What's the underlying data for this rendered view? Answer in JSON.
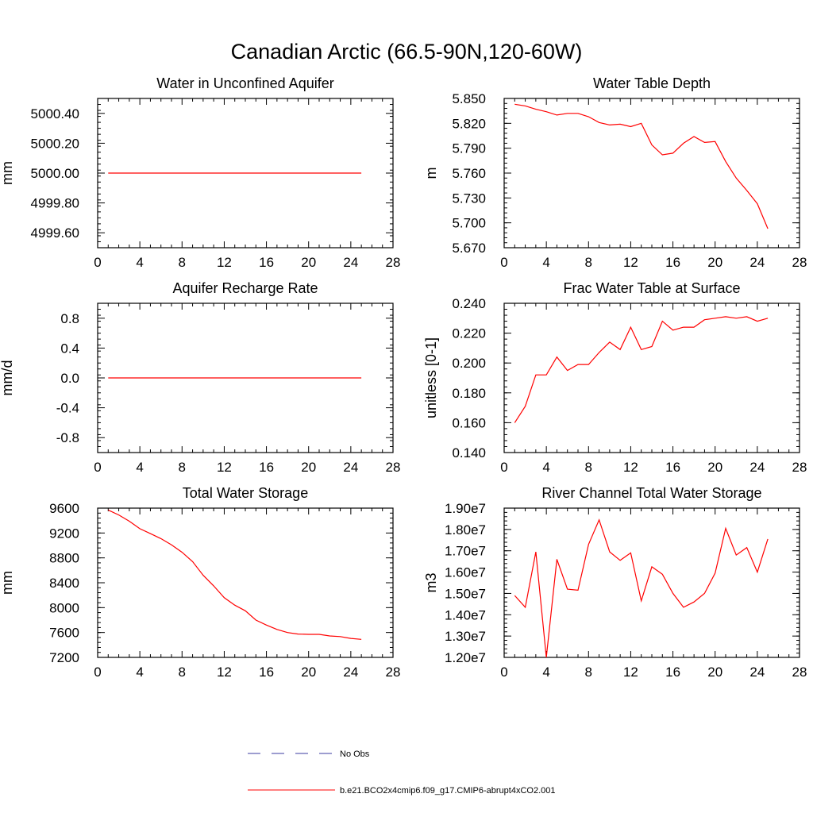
{
  "figure": {
    "title": "Canadian Arctic (66.5-90N,120-60W)"
  },
  "legend": [
    {
      "label": "No Obs",
      "color": "#3b3ba0",
      "dash": "dashed"
    },
    {
      "label": "b.e21.BCO2x4cmip6.f09_g17.CMIP6-abrupt4xCO2.001",
      "color": "#ff0000",
      "dash": "solid"
    }
  ],
  "chart_data": [
    {
      "type": "line",
      "title": "Water in Unconfined Aquifer",
      "ylabel": "mm",
      "xlim": [
        0,
        28
      ],
      "ylim": [
        4999.5,
        5000.5
      ],
      "xticks": [
        "0",
        "4",
        "8",
        "12",
        "16",
        "20",
        "24",
        "28"
      ],
      "yticks": [
        {
          "value": 4999.6,
          "label": "4999.60"
        },
        {
          "value": 4999.8,
          "label": "4999.80"
        },
        {
          "value": 5000.0,
          "label": "5000.00"
        },
        {
          "value": 5000.2,
          "label": "5000.20"
        },
        {
          "value": 5000.4,
          "label": "5000.40"
        }
      ],
      "series": [
        {
          "color": "#ff0000",
          "x": [
            1,
            2,
            3,
            4,
            5,
            6,
            7,
            8,
            9,
            10,
            11,
            12,
            13,
            14,
            15,
            16,
            17,
            18,
            19,
            20,
            21,
            22,
            23,
            24,
            25
          ],
          "y": [
            5000.0,
            5000.0,
            5000.0,
            5000.0,
            5000.0,
            5000.0,
            5000.0,
            5000.0,
            5000.0,
            5000.0,
            5000.0,
            5000.0,
            5000.0,
            5000.0,
            5000.0,
            5000.0,
            5000.0,
            5000.0,
            5000.0,
            5000.0,
            5000.0,
            5000.0,
            5000.0,
            5000.0,
            5000.0
          ]
        }
      ]
    },
    {
      "type": "line",
      "title": "Water Table Depth",
      "ylabel": "m",
      "xlim": [
        0,
        28
      ],
      "ylim": [
        5.67,
        5.85
      ],
      "xticks": [
        "0",
        "4",
        "8",
        "12",
        "16",
        "20",
        "24",
        "28"
      ],
      "yticks": [
        {
          "value": 5.67,
          "label": "5.670"
        },
        {
          "value": 5.7,
          "label": "5.700"
        },
        {
          "value": 5.73,
          "label": "5.730"
        },
        {
          "value": 5.76,
          "label": "5.760"
        },
        {
          "value": 5.79,
          "label": "5.790"
        },
        {
          "value": 5.82,
          "label": "5.820"
        },
        {
          "value": 5.85,
          "label": "5.850"
        }
      ],
      "series": [
        {
          "color": "#ff0000",
          "x": [
            1,
            2,
            3,
            4,
            5,
            6,
            7,
            8,
            9,
            10,
            11,
            12,
            13,
            14,
            15,
            16,
            17,
            18,
            19,
            20,
            21,
            22,
            23,
            24,
            25
          ],
          "y": [
            5.843,
            5.841,
            5.837,
            5.834,
            5.83,
            5.832,
            5.832,
            5.828,
            5.821,
            5.818,
            5.819,
            5.816,
            5.82,
            5.794,
            5.782,
            5.784,
            5.796,
            5.804,
            5.797,
            5.798,
            5.774,
            5.754,
            5.739,
            5.723,
            5.693
          ]
        }
      ]
    },
    {
      "type": "line",
      "title": "Aquifer Recharge Rate",
      "ylabel": "mm/d",
      "xlim": [
        0,
        28
      ],
      "ylim": [
        -1.0,
        1.0
      ],
      "xticks": [
        "0",
        "4",
        "8",
        "12",
        "16",
        "20",
        "24",
        "28"
      ],
      "yticks": [
        {
          "value": -0.8,
          "label": "-0.8"
        },
        {
          "value": -0.4,
          "label": "-0.4"
        },
        {
          "value": 0.0,
          "label": "0.0"
        },
        {
          "value": 0.4,
          "label": "0.4"
        },
        {
          "value": 0.8,
          "label": "0.8"
        }
      ],
      "series": [
        {
          "color": "#ff0000",
          "x": [
            1,
            2,
            3,
            4,
            5,
            6,
            7,
            8,
            9,
            10,
            11,
            12,
            13,
            14,
            15,
            16,
            17,
            18,
            19,
            20,
            21,
            22,
            23,
            24,
            25
          ],
          "y": [
            0,
            0,
            0,
            0,
            0,
            0,
            0,
            0,
            0,
            0,
            0,
            0,
            0,
            0,
            0,
            0,
            0,
            0,
            0,
            0,
            0,
            0,
            0,
            0,
            0
          ]
        }
      ]
    },
    {
      "type": "line",
      "title": "Frac Water Table at Surface",
      "ylabel": "unitless [0-1]",
      "xlim": [
        0,
        28
      ],
      "ylim": [
        0.14,
        0.24
      ],
      "xticks": [
        "0",
        "4",
        "8",
        "12",
        "16",
        "20",
        "24",
        "28"
      ],
      "yticks": [
        {
          "value": 0.14,
          "label": "0.140"
        },
        {
          "value": 0.16,
          "label": "0.160"
        },
        {
          "value": 0.18,
          "label": "0.180"
        },
        {
          "value": 0.2,
          "label": "0.200"
        },
        {
          "value": 0.22,
          "label": "0.220"
        },
        {
          "value": 0.24,
          "label": "0.240"
        }
      ],
      "series": [
        {
          "color": "#ff0000",
          "x": [
            1,
            2,
            3,
            4,
            5,
            6,
            7,
            8,
            9,
            10,
            11,
            12,
            13,
            14,
            15,
            16,
            17,
            18,
            19,
            20,
            21,
            22,
            23,
            24,
            25
          ],
          "y": [
            0.16,
            0.171,
            0.192,
            0.192,
            0.204,
            0.195,
            0.199,
            0.199,
            0.207,
            0.214,
            0.209,
            0.224,
            0.209,
            0.211,
            0.228,
            0.222,
            0.224,
            0.224,
            0.229,
            0.23,
            0.231,
            0.23,
            0.231,
            0.228,
            0.23
          ]
        }
      ]
    },
    {
      "type": "line",
      "title": "Total Water Storage",
      "ylabel": "mm",
      "xlim": [
        0,
        28
      ],
      "ylim": [
        7200,
        9600
      ],
      "xticks": [
        "0",
        "4",
        "8",
        "12",
        "16",
        "20",
        "24",
        "28"
      ],
      "yticks": [
        {
          "value": 7200,
          "label": "7200"
        },
        {
          "value": 7600,
          "label": "7600"
        },
        {
          "value": 8000,
          "label": "8000"
        },
        {
          "value": 8400,
          "label": "8400"
        },
        {
          "value": 8800,
          "label": "8800"
        },
        {
          "value": 9200,
          "label": "9200"
        },
        {
          "value": 9600,
          "label": "9600"
        }
      ],
      "series": [
        {
          "color": "#ff0000",
          "x": [
            1,
            2,
            3,
            4,
            5,
            6,
            7,
            8,
            9,
            10,
            11,
            12,
            13,
            14,
            15,
            16,
            17,
            18,
            19,
            20,
            21,
            22,
            23,
            24,
            25
          ],
          "y": [
            9570,
            9490,
            9390,
            9270,
            9190,
            9110,
            9010,
            8890,
            8740,
            8520,
            8350,
            8160,
            8040,
            7950,
            7800,
            7720,
            7650,
            7600,
            7575,
            7570,
            7570,
            7545,
            7535,
            7505,
            7490
          ]
        }
      ]
    },
    {
      "type": "line",
      "title": "River Channel Total Water Storage",
      "ylabel": "m3",
      "xlim": [
        0,
        28
      ],
      "ylim": [
        12000000,
        19000000
      ],
      "xticks": [
        "0",
        "4",
        "8",
        "12",
        "16",
        "20",
        "24",
        "28"
      ],
      "yticks": [
        {
          "value": 12000000,
          "label": "1.20e7"
        },
        {
          "value": 13000000,
          "label": "1.30e7"
        },
        {
          "value": 14000000,
          "label": "1.40e7"
        },
        {
          "value": 15000000,
          "label": "1.50e7"
        },
        {
          "value": 16000000,
          "label": "1.60e7"
        },
        {
          "value": 17000000,
          "label": "1.70e7"
        },
        {
          "value": 18000000,
          "label": "1.80e7"
        },
        {
          "value": 19000000,
          "label": "1.90e7"
        }
      ],
      "series": [
        {
          "color": "#ff0000",
          "x": [
            1,
            2,
            3,
            4,
            5,
            6,
            7,
            8,
            9,
            10,
            11,
            12,
            13,
            14,
            15,
            16,
            17,
            18,
            19,
            20,
            21,
            22,
            23,
            24,
            25
          ],
          "y": [
            14900000,
            14350000,
            16950000,
            12000000,
            16600000,
            15200000,
            15150000,
            17300000,
            18450000,
            16950000,
            16550000,
            16900000,
            14650000,
            16250000,
            15900000,
            15000000,
            14350000,
            14600000,
            15000000,
            15950000,
            18050000,
            16800000,
            17150000,
            16000000,
            17550000
          ]
        }
      ]
    }
  ]
}
